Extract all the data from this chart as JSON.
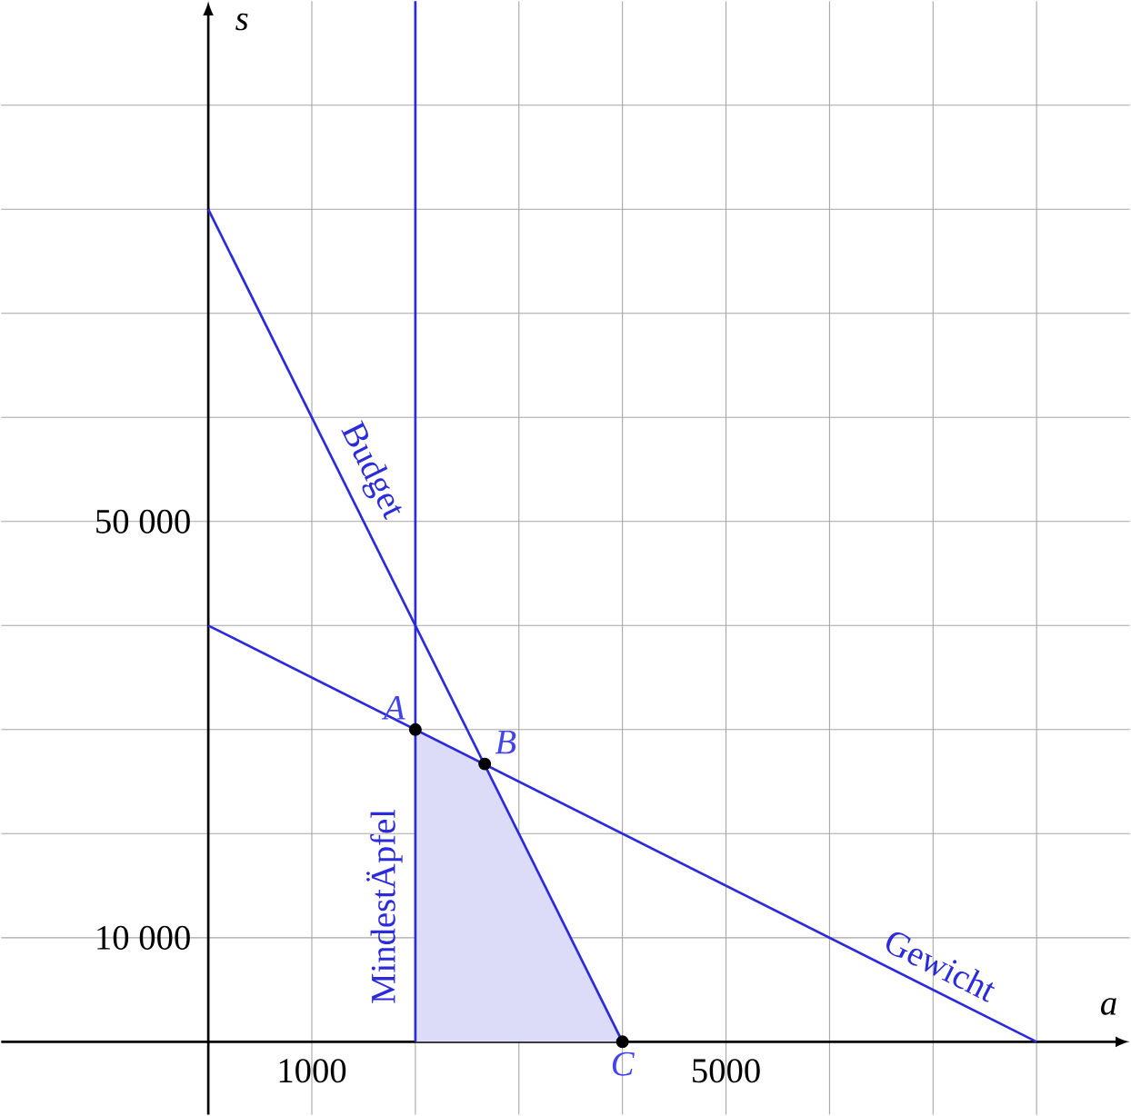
{
  "chart_data": {
    "type": "line",
    "xlabel": "a",
    "ylabel": "s",
    "xlim": [
      -2000,
      8900
    ],
    "ylim": [
      -7000,
      100000
    ],
    "xticks": [
      {
        "value": 0,
        "label": null
      },
      {
        "value": 1000,
        "label": "1000"
      },
      {
        "value": 2000,
        "label": null
      },
      {
        "value": 3000,
        "label": null
      },
      {
        "value": 4000,
        "label": null
      },
      {
        "value": 5000,
        "label": "5000"
      },
      {
        "value": 6000,
        "label": null
      },
      {
        "value": 7000,
        "label": null
      },
      {
        "value": 8000,
        "label": null
      }
    ],
    "yticks": [
      {
        "value": 0,
        "label": null
      },
      {
        "value": 10000,
        "label": "10 000"
      },
      {
        "value": 20000,
        "label": null
      },
      {
        "value": 30000,
        "label": null
      },
      {
        "value": 40000,
        "label": null
      },
      {
        "value": 50000,
        "label": "50 000"
      },
      {
        "value": 60000,
        "label": null
      },
      {
        "value": 70000,
        "label": null
      },
      {
        "value": 80000,
        "label": null
      },
      {
        "value": 90000,
        "label": null
      }
    ],
    "grid": true,
    "series": [
      {
        "type": "area",
        "color": "#dcdcf8",
        "x": [
          2000,
          2670,
          4000
        ],
        "values": [
          30000,
          26700,
          0
        ]
      },
      {
        "name": "Budget",
        "color": "#2b2bdb",
        "x": [
          0,
          4000
        ],
        "values": [
          80000,
          0
        ]
      },
      {
        "name": "Gewicht",
        "color": "#2b2bdb",
        "x": [
          0,
          8000
        ],
        "values": [
          40000,
          0
        ]
      },
      {
        "name": "MindestÄpfel",
        "color": "#2b2bdb",
        "x": [
          2000,
          2000
        ],
        "values": [
          0,
          100000
        ]
      },
      {
        "type": "scatter",
        "color": "#000000",
        "marker": "circle",
        "x": [
          2000,
          2670,
          4000
        ],
        "values": [
          30000,
          26700,
          0
        ]
      }
    ],
    "annotations": [
      {
        "text": "A",
        "x": 2000,
        "y": 30000
      },
      {
        "text": "B",
        "x": 2670,
        "y": 26700
      },
      {
        "text": "C",
        "x": 4000,
        "y": 0
      }
    ]
  }
}
